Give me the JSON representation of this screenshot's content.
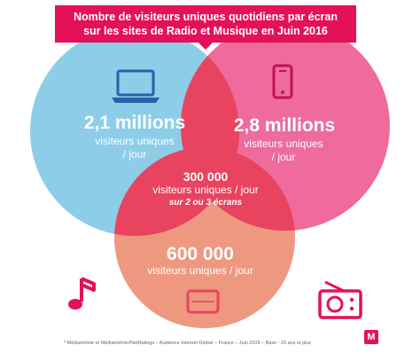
{
  "title": {
    "line1": "Nombre de visiteurs uniques quotidiens par écran",
    "line2": "sur les sites de Radio et Musique en Juin 2016"
  },
  "colors": {
    "laptop_circle": "#8dcde8",
    "phone_circle": "#ee6b9c",
    "tablet_circle": "#ef9880",
    "overlap": "#e8435f",
    "accent": "#e4115a"
  },
  "laptop": {
    "value": "2,1 millions",
    "unit1": "visiteurs uniques",
    "unit2": "/ jour",
    "icon": "laptop-icon"
  },
  "phone": {
    "value": "2,8 millions",
    "unit1": "visiteurs uniques",
    "unit2": "/ jour",
    "icon": "smartphone-icon"
  },
  "overlap": {
    "value": "300 000",
    "unit": "visiteurs uniques / jour",
    "note": "sur 2 ou 3 écrans"
  },
  "tablet": {
    "value": "600 000",
    "unit": "visiteurs uniques / jour",
    "icon": "tablet-icon"
  },
  "decor": {
    "left_icon": "music-note-icon",
    "right_icon": "radio-icon"
  },
  "footnote": "* Médiamétrie et Médiamétrie//NetRatings – Audience Internet Global – France – Juin 2016 – Base : 15 ans et plus",
  "logo": "M"
}
